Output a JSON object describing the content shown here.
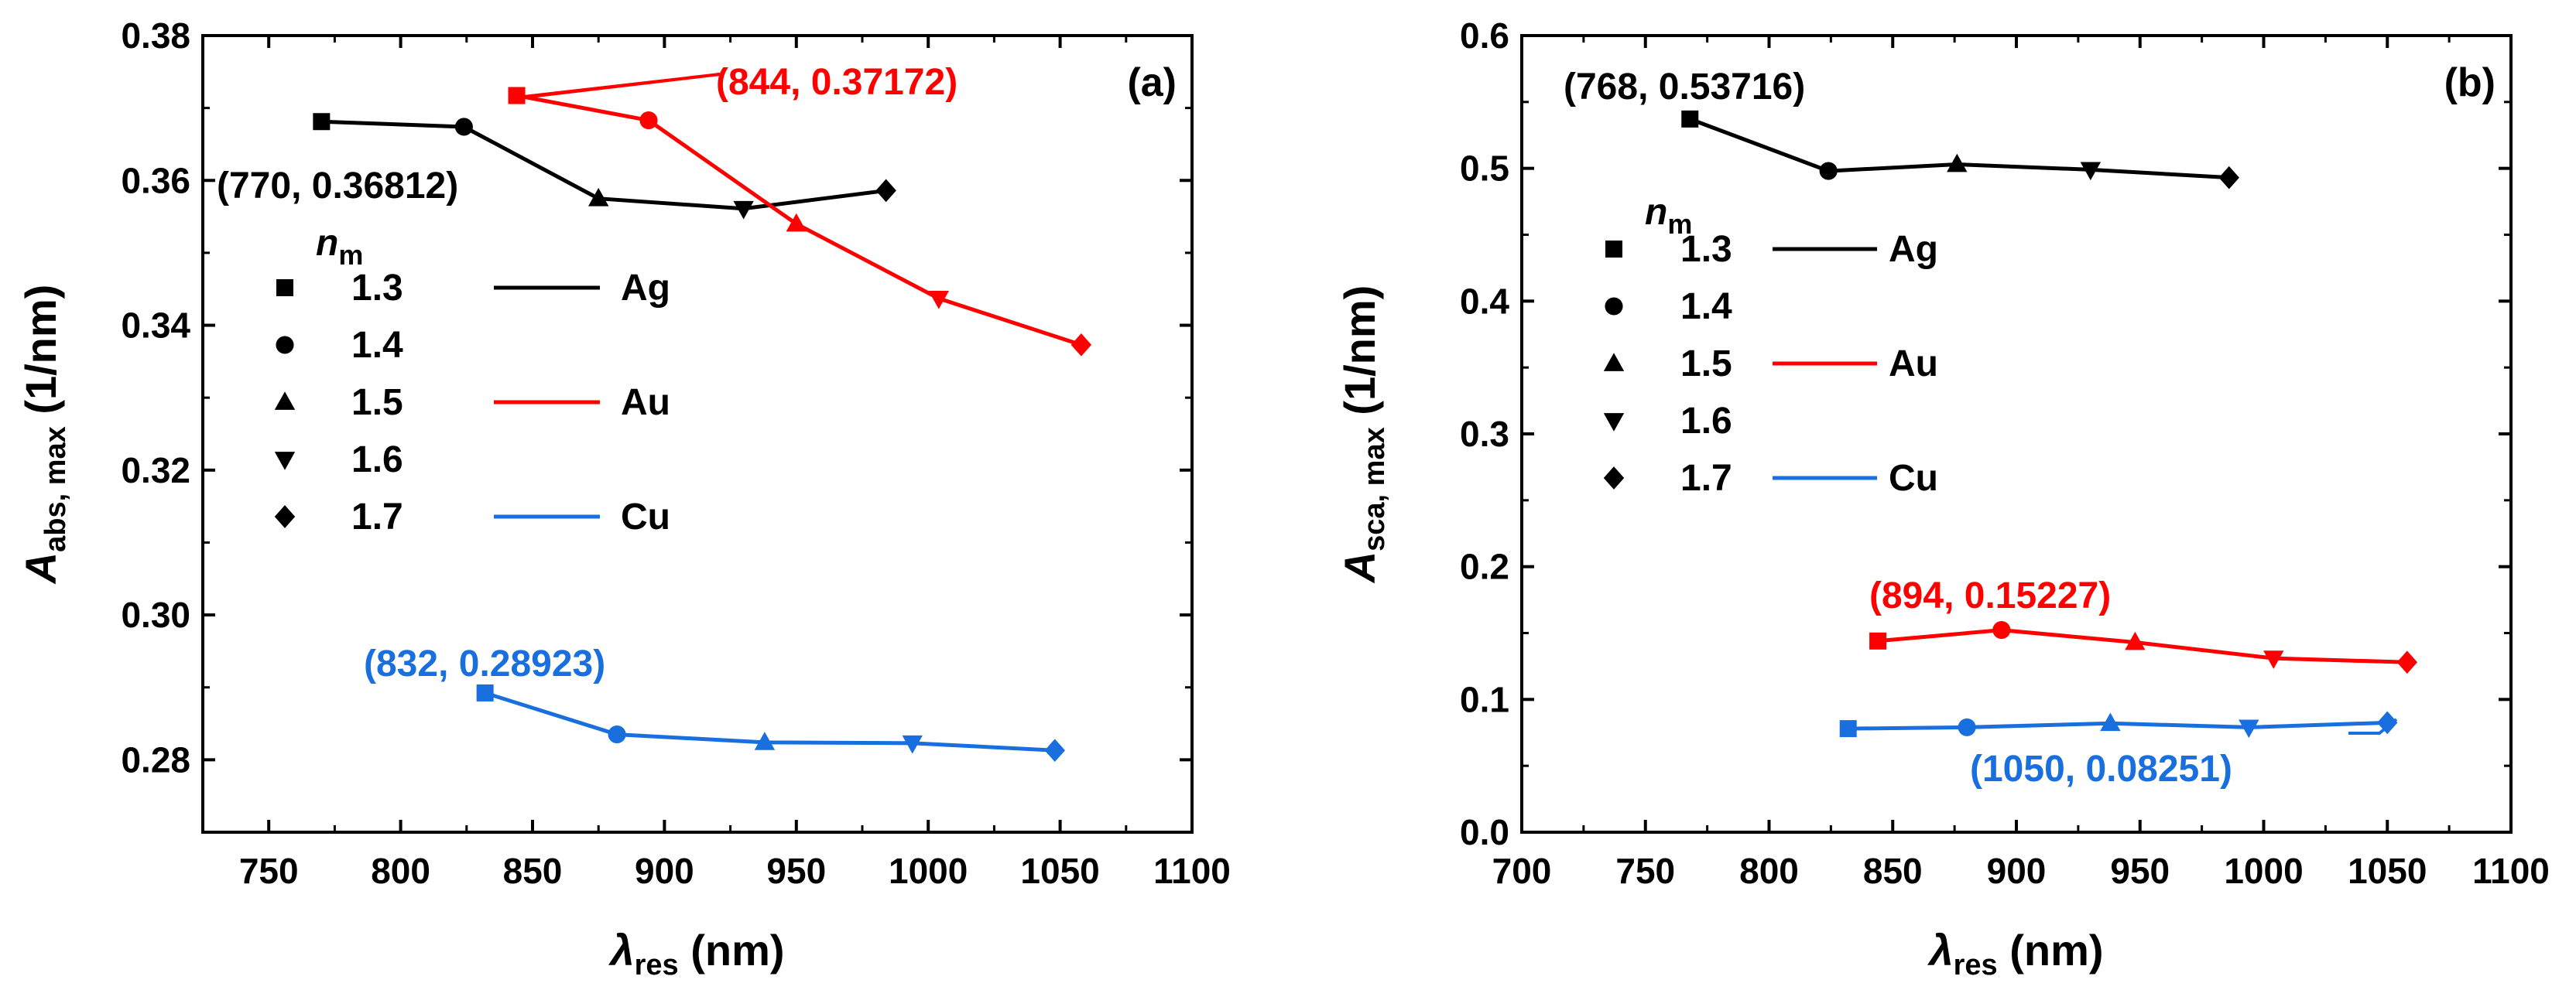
{
  "chart_data": [
    {
      "type": "line",
      "panel": "(a)",
      "xlabel": "λres (nm)",
      "xlabel_main": "λ",
      "xlabel_sub": "res",
      "xlabel_unit": " (nm)",
      "ylabel": "Aabs, max (1/nm)",
      "ylabel_main": "A",
      "ylabel_sub": "abs, max",
      "ylabel_unit": " (1/nm)",
      "xlim": [
        725,
        1100
      ],
      "ylim": [
        0.27,
        0.38
      ],
      "xticks": [
        750,
        800,
        850,
        900,
        950,
        1000,
        1050,
        1100
      ],
      "xtick_labels": [
        "750",
        "800",
        "850",
        "900",
        "950",
        "1000",
        "1050",
        "1100"
      ],
      "yticks": [
        0.28,
        0.3,
        0.32,
        0.34,
        0.36,
        0.38
      ],
      "ytick_labels": [
        "0.28",
        "0.30",
        "0.32",
        "0.34",
        "0.36",
        "0.38"
      ],
      "series": [
        {
          "name": "Ag",
          "color": "#000000",
          "x": [
            770,
            824,
            875,
            930,
            984
          ],
          "y": [
            0.36812,
            0.3674,
            0.3575,
            0.3561,
            0.3586
          ]
        },
        {
          "name": "Au",
          "color": "#ff0000",
          "x": [
            844,
            894,
            950,
            1004,
            1058
          ],
          "y": [
            0.37172,
            0.3683,
            0.354,
            0.3437,
            0.3373
          ]
        },
        {
          "name": "Cu",
          "color": "#1a6fdf",
          "x": [
            832,
            882,
            938,
            994,
            1048
          ],
          "y": [
            0.28923,
            0.2835,
            0.2824,
            0.2823,
            0.2813
          ]
        }
      ],
      "markers_by_nm": [
        "square",
        "circle",
        "triangle-up",
        "triangle-down",
        "diamond"
      ],
      "annotations": [
        {
          "text": "(770, 0.36812)",
          "color": "#000000",
          "x": 770,
          "y": 0.36812
        },
        {
          "text": "(844, 0.37172)",
          "color": "#ff0000",
          "x": 844,
          "y": 0.37172
        },
        {
          "text": "(832, 0.28923)",
          "color": "#1a6fdf",
          "x": 832,
          "y": 0.28923
        }
      ]
    },
    {
      "type": "line",
      "panel": "(b)",
      "xlabel": "λres (nm)",
      "xlabel_main": "λ",
      "xlabel_sub": "res",
      "xlabel_unit": " (nm)",
      "ylabel": "Asca, max (1/nm)",
      "ylabel_main": "A",
      "ylabel_sub": "sca, max",
      "ylabel_unit": " (1/nm)",
      "xlim": [
        700,
        1100
      ],
      "ylim": [
        0.0,
        0.6
      ],
      "xticks": [
        700,
        750,
        800,
        850,
        900,
        950,
        1000,
        1050,
        1100
      ],
      "xtick_labels": [
        "700",
        "750",
        "800",
        "850",
        "900",
        "950",
        "1000",
        "1050",
        "1100"
      ],
      "yticks": [
        0.0,
        0.1,
        0.2,
        0.3,
        0.4,
        0.5,
        0.6
      ],
      "ytick_labels": [
        "0.0",
        "0.1",
        "0.2",
        "0.3",
        "0.4",
        "0.5",
        "0.6"
      ],
      "series": [
        {
          "name": "Ag",
          "color": "#000000",
          "x": [
            768,
            824,
            876,
            930,
            986
          ],
          "y": [
            0.53716,
            0.498,
            0.503,
            0.499,
            0.493
          ]
        },
        {
          "name": "Au",
          "color": "#ff0000",
          "x": [
            844,
            894,
            948,
            1004,
            1058
          ],
          "y": [
            0.144,
            0.15227,
            0.143,
            0.131,
            0.128
          ]
        },
        {
          "name": "Cu",
          "color": "#1a6fdf",
          "x": [
            832,
            880,
            938,
            994,
            1050
          ],
          "y": [
            0.078,
            0.079,
            0.082,
            0.079,
            0.08251
          ]
        }
      ],
      "markers_by_nm": [
        "square",
        "circle",
        "triangle-up",
        "triangle-down",
        "diamond"
      ],
      "annotations": [
        {
          "text": "(768, 0.53716)",
          "color": "#000000",
          "x": 768,
          "y": 0.53716
        },
        {
          "text": "(894, 0.15227)",
          "color": "#ff0000",
          "x": 894,
          "y": 0.15227
        },
        {
          "text": "(1050, 0.08251)",
          "color": "#1a6fdf",
          "x": 1050,
          "y": 0.08251
        }
      ]
    }
  ],
  "legend": {
    "title_main": "n",
    "title_sub": "m",
    "nm_values": [
      "1.3",
      "1.4",
      "1.5",
      "1.6",
      "1.7"
    ],
    "metals": [
      {
        "name": "Ag",
        "color": "#000000"
      },
      {
        "name": "Au",
        "color": "#ff0000"
      },
      {
        "name": "Cu",
        "color": "#1a6fdf"
      }
    ]
  }
}
